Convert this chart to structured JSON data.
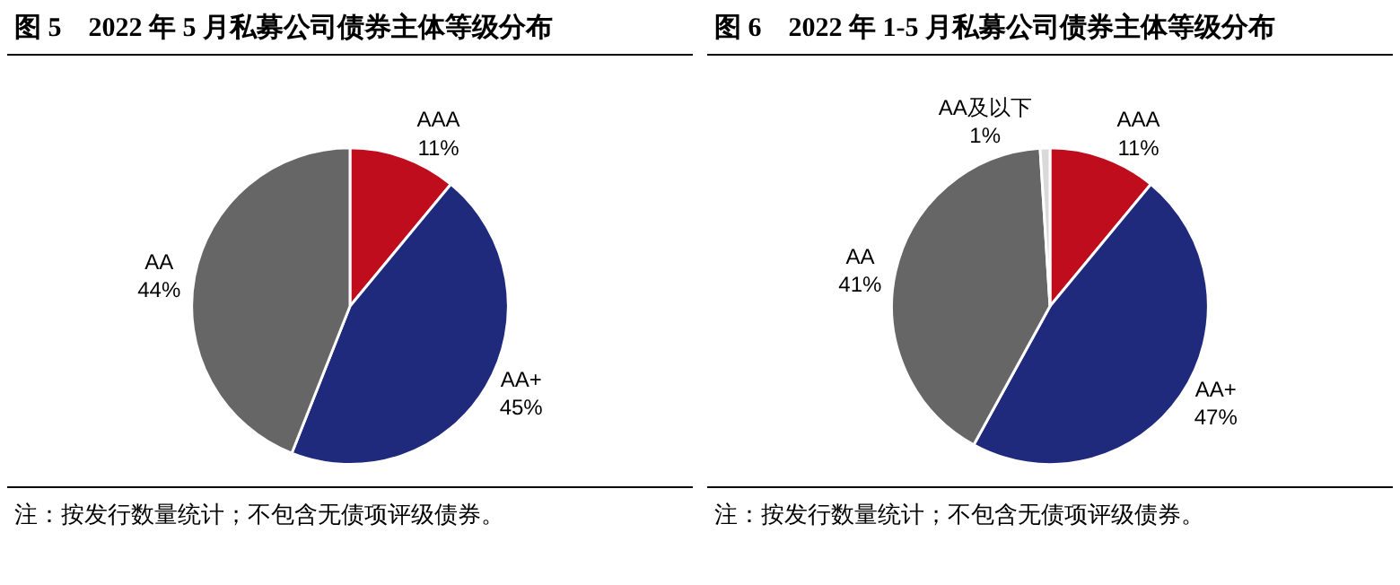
{
  "chart_data": [
    {
      "type": "pie",
      "title": "图 5　2022 年 5 月私募公司债券主体等级分布",
      "categories": [
        "AAA",
        "AA+",
        "AA"
      ],
      "values": [
        11,
        45,
        44
      ],
      "value_labels": [
        "11%",
        "45%",
        "44%"
      ],
      "colors": [
        "#c00d1e",
        "#1f2a7c",
        "#666666"
      ],
      "legend": false,
      "annotations": [
        "注：按发行数量统计；不包含无债项评级债券。"
      ]
    },
    {
      "type": "pie",
      "title": "图 6　2022 年 1-5 月私募公司债券主体等级分布",
      "categories": [
        "AAA",
        "AA+",
        "AA",
        "AA及以下"
      ],
      "values": [
        11,
        47,
        41,
        1
      ],
      "value_labels": [
        "11%",
        "47%",
        "41%",
        "1%"
      ],
      "colors": [
        "#c00d1e",
        "#1f2a7c",
        "#666666",
        "#d9d9d9"
      ],
      "legend": false,
      "annotations": [
        "注：按发行数量统计；不包含无债项评级债券。"
      ]
    }
  ]
}
